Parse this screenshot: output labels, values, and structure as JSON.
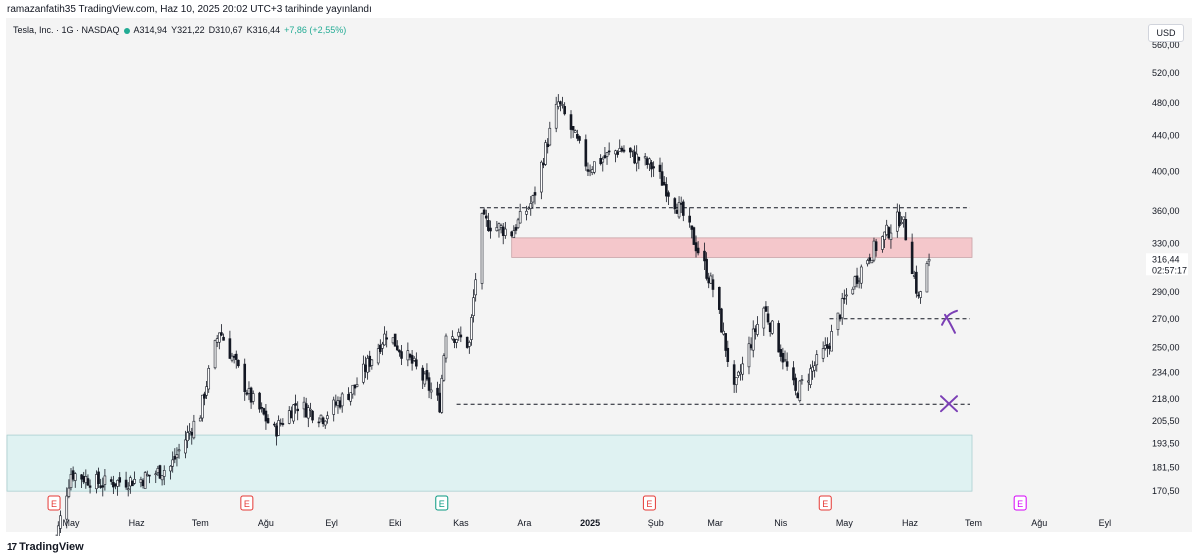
{
  "header": {
    "author_line": "ramazanfatih35 TradingView.com, Haz 10, 2025 20:02 UTC+3 tarihinde yayınlandı"
  },
  "symbol": {
    "name": "Tesla, Inc. · 1G · NASDAQ",
    "open": "A314,94",
    "high": "Y321,22",
    "low": "D310,67",
    "close": "K316,44",
    "change": "+7,86 (+2,55%)",
    "change_color": "#22ab94"
  },
  "currency": "USD",
  "price_badge": {
    "price": "316,44",
    "countdown": "02:57:17"
  },
  "branding": {
    "logo_mark": "17",
    "logo_text": "TradingView"
  },
  "colors": {
    "background": "#f4f4f4",
    "up_candle": "#131722",
    "down_candle": "#131722",
    "resistance_zone": "#f4c7cb",
    "support_zone": "#dff2f2",
    "annotation": "#7b3fb5",
    "earnings_red": "#e53935",
    "earnings_green": "#089981",
    "earnings_pink": "#d500f9"
  },
  "chart_data": {
    "type": "candlestick",
    "y_axis_scale": "log",
    "y_ticks": [
      "560,00",
      "520,00",
      "480,00",
      "440,00",
      "400,00",
      "360,00",
      "330,00",
      "290,00",
      "270,00",
      "250,00",
      "234,00",
      "218,00",
      "205,50",
      "193,50",
      "181,50",
      "170,50"
    ],
    "y_tick_values": [
      560,
      520,
      480,
      440,
      400,
      360,
      330,
      290,
      270,
      250,
      234,
      218,
      205.5,
      193.5,
      181.5,
      170.5
    ],
    "x_ticks": [
      "May",
      "Haz",
      "Tem",
      "Ağu",
      "Eyl",
      "Eki",
      "Kas",
      "Ara",
      "2025",
      "Şub",
      "Mar",
      "Nis",
      "May",
      "Haz",
      "Tem",
      "Ağu",
      "Eyl"
    ],
    "approx_close_path": [
      {
        "date": "2024-04-22",
        "close": 142
      },
      {
        "date": "2024-05-01",
        "close": 179
      },
      {
        "date": "2024-05-15",
        "close": 174
      },
      {
        "date": "2024-06-03",
        "close": 176
      },
      {
        "date": "2024-06-17",
        "close": 182
      },
      {
        "date": "2024-07-01",
        "close": 210
      },
      {
        "date": "2024-07-10",
        "close": 262
      },
      {
        "date": "2024-07-24",
        "close": 220
      },
      {
        "date": "2024-08-05",
        "close": 200
      },
      {
        "date": "2024-08-15",
        "close": 215
      },
      {
        "date": "2024-08-28",
        "close": 208
      },
      {
        "date": "2024-09-12",
        "close": 225
      },
      {
        "date": "2024-09-27",
        "close": 260
      },
      {
        "date": "2024-10-10",
        "close": 238
      },
      {
        "date": "2024-10-22",
        "close": 215
      },
      {
        "date": "2024-10-25",
        "close": 262
      },
      {
        "date": "2024-11-05",
        "close": 252
      },
      {
        "date": "2024-11-11",
        "close": 350
      },
      {
        "date": "2024-11-25",
        "close": 340
      },
      {
        "date": "2024-12-05",
        "close": 370
      },
      {
        "date": "2024-12-17",
        "close": 480
      },
      {
        "date": "2024-12-31",
        "close": 404
      },
      {
        "date": "2025-01-15",
        "close": 425
      },
      {
        "date": "2025-01-31",
        "close": 404
      },
      {
        "date": "2025-02-14",
        "close": 355
      },
      {
        "date": "2025-02-28",
        "close": 293
      },
      {
        "date": "2025-03-10",
        "close": 222
      },
      {
        "date": "2025-03-24",
        "close": 278
      },
      {
        "date": "2025-04-08",
        "close": 221
      },
      {
        "date": "2025-04-23",
        "close": 250
      },
      {
        "date": "2025-05-02",
        "close": 287
      },
      {
        "date": "2025-05-12",
        "close": 318
      },
      {
        "date": "2025-05-28",
        "close": 356
      },
      {
        "date": "2025-06-05",
        "close": 284
      },
      {
        "date": "2025-06-10",
        "close": 316.44
      }
    ],
    "last_candle": {
      "date": "2025-06-10",
      "open": 314.94,
      "high": 321.22,
      "low": 310.67,
      "close": 316.44
    },
    "zones": [
      {
        "name": "resistance",
        "low": 318,
        "high": 335,
        "color": "#f4c7cb"
      },
      {
        "name": "support",
        "low": 170.5,
        "high": 198,
        "color": "#dff2f2"
      }
    ],
    "levels": [
      {
        "name": "upper-dashed",
        "value": 363
      },
      {
        "name": "mid-dashed",
        "value": 270
      },
      {
        "name": "lower-dashed",
        "value": 215
      }
    ],
    "earnings_markers": [
      {
        "date": "2024-04-23",
        "color": "#e53935",
        "label": "E"
      },
      {
        "date": "2024-07-23",
        "color": "#e53935",
        "label": "E"
      },
      {
        "date": "2024-10-23",
        "color": "#089981",
        "label": "E"
      },
      {
        "date": "2025-01-29",
        "color": "#e53935",
        "label": "E"
      },
      {
        "date": "2025-04-22",
        "color": "#e53935",
        "label": "E"
      },
      {
        "date": "2025-07-23",
        "color": "#d500f9",
        "label": "E"
      }
    ],
    "legend": "none",
    "grid": false
  }
}
